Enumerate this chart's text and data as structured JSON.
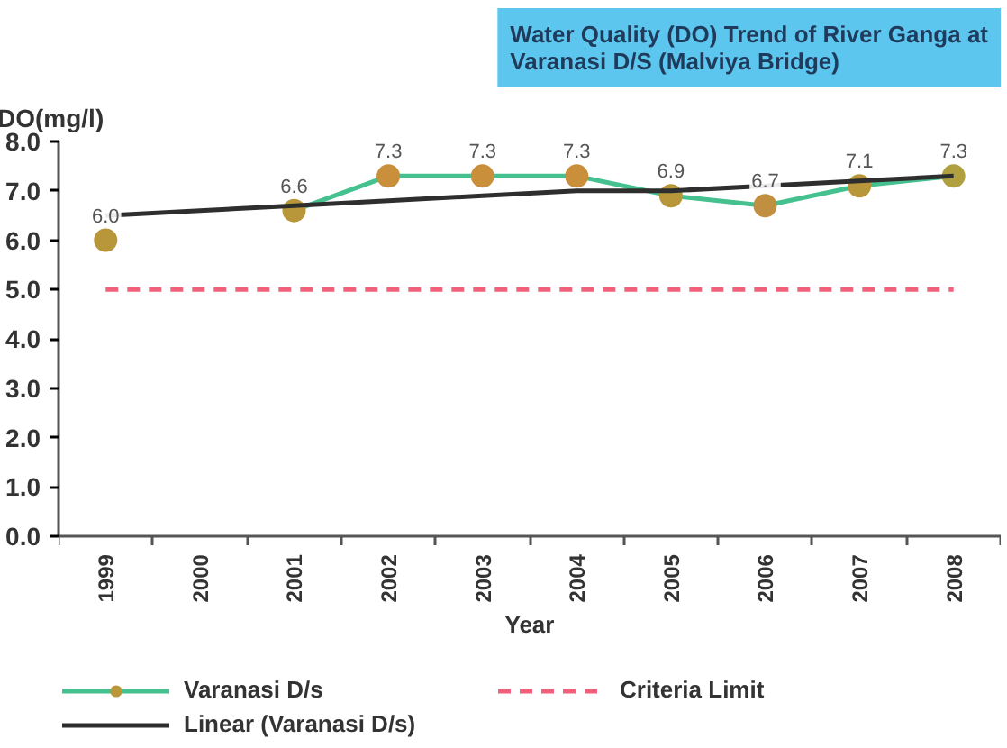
{
  "chart_data": {
    "type": "line",
    "title": "Water Quality (DO) Trend of River Ganga at Varanasi D/S (Malviya Bridge)",
    "ylabel": "DO(mg/l)",
    "xlabel": "Year",
    "categories": [
      "1999",
      "2000",
      "2001",
      "2002",
      "2003",
      "2004",
      "2005",
      "2006",
      "2007",
      "2008"
    ],
    "ylim": [
      0,
      8
    ],
    "yticks": [
      {
        "value": 0,
        "label": "0.0"
      },
      {
        "value": 1,
        "label": "1.0"
      },
      {
        "value": 2,
        "label": "2.0"
      },
      {
        "value": 3,
        "label": "3.0"
      },
      {
        "value": 4,
        "label": "4.0"
      },
      {
        "value": 5,
        "label": "5.0"
      },
      {
        "value": 6,
        "label": "6.0"
      },
      {
        "value": 7,
        "label": "7.0"
      },
      {
        "value": 8,
        "label": "8.0"
      }
    ],
    "legend": "bottom",
    "series": [
      {
        "name": "Varanasi D/s",
        "color": "#45c08f",
        "colors": [
          "#b8963a",
          null,
          "#b8963a",
          "#c98f3a",
          "#c98f3a",
          "#c98f3a",
          "#b8963a",
          "#c09040",
          "#b8963a",
          "#b0a040"
        ],
        "marker": "circle",
        "values": [
          6.0,
          null,
          6.6,
          7.3,
          7.3,
          7.3,
          6.9,
          6.7,
          7.1,
          7.3
        ],
        "value_labels": [
          "6.0",
          null,
          "6.6",
          "7.3",
          "7.3",
          "7.3",
          "6.9",
          "6.7",
          "7.1",
          "7.3"
        ]
      },
      {
        "name": "Criteria Limit",
        "color": "#f0607a",
        "line_style": "dashed",
        "values": [
          5.0,
          5.0,
          5.0,
          5.0,
          5.0,
          5.0,
          5.0,
          5.0,
          5.0,
          5.0
        ]
      },
      {
        "name": "Linear (Varanasi D/s)",
        "type": "line",
        "color": "#2e2e2e",
        "values": [
          6.5,
          6.6,
          6.7,
          6.8,
          6.9,
          7.0,
          7.0,
          7.1,
          7.2,
          7.3
        ]
      }
    ]
  }
}
